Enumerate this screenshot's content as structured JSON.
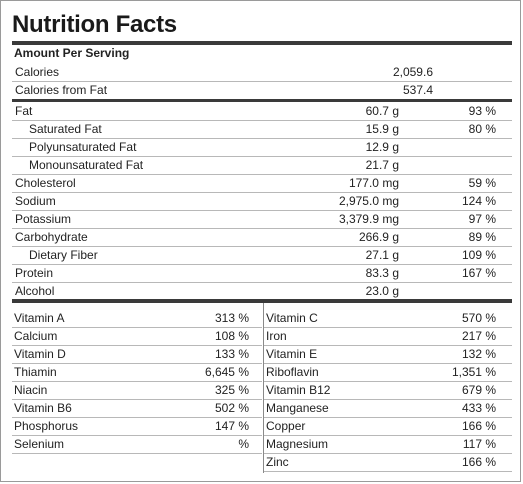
{
  "title": "Nutrition Facts",
  "amount_per_serving": "Amount Per Serving",
  "calories": [
    {
      "label": "Calories",
      "value": "2,059.6"
    },
    {
      "label": "Calories from Fat",
      "value": "537.4"
    }
  ],
  "nutrients": [
    {
      "label": "Fat",
      "amount": "60.7 g",
      "pct": "93 %",
      "indent": false
    },
    {
      "label": "Saturated Fat",
      "amount": "15.9 g",
      "pct": "80 %",
      "indent": true
    },
    {
      "label": "Polyunsaturated Fat",
      "amount": "12.9 g",
      "pct": "",
      "indent": true
    },
    {
      "label": "Monounsaturated Fat",
      "amount": "21.7 g",
      "pct": "",
      "indent": true
    },
    {
      "label": "Cholesterol",
      "amount": "177.0 mg",
      "pct": "59 %",
      "indent": false
    },
    {
      "label": "Sodium",
      "amount": "2,975.0 mg",
      "pct": "124 %",
      "indent": false
    },
    {
      "label": "Potassium",
      "amount": "3,379.9 mg",
      "pct": "97 %",
      "indent": false
    },
    {
      "label": "Carbohydrate",
      "amount": "266.9 g",
      "pct": "89 %",
      "indent": false
    },
    {
      "label": "Dietary Fiber",
      "amount": "27.1 g",
      "pct": "109 %",
      "indent": true
    },
    {
      "label": "Protein",
      "amount": "83.3 g",
      "pct": "167 %",
      "indent": false
    },
    {
      "label": "Alcohol",
      "amount": "23.0 g",
      "pct": "",
      "indent": false
    }
  ],
  "vitamins_left": [
    {
      "label": "Vitamin A",
      "pct": "313 %"
    },
    {
      "label": "Calcium",
      "pct": "108 %"
    },
    {
      "label": "Vitamin D",
      "pct": "133 %"
    },
    {
      "label": "Thiamin",
      "pct": "6,645 %"
    },
    {
      "label": "Niacin",
      "pct": "325 %"
    },
    {
      "label": "Vitamin B6",
      "pct": "502 %"
    },
    {
      "label": "Phosphorus",
      "pct": "147 %"
    },
    {
      "label": "Selenium",
      "pct": "%"
    }
  ],
  "vitamins_right": [
    {
      "label": "Vitamin C",
      "pct": "570 %"
    },
    {
      "label": "Iron",
      "pct": "217 %"
    },
    {
      "label": "Vitamin E",
      "pct": "132 %"
    },
    {
      "label": "Riboflavin",
      "pct": "1,351 %"
    },
    {
      "label": "Vitamin B12",
      "pct": "679 %"
    },
    {
      "label": "Manganese",
      "pct": "433 %"
    },
    {
      "label": "Copper",
      "pct": "166 %"
    },
    {
      "label": "Magnesium",
      "pct": "117 %"
    },
    {
      "label": "Zinc",
      "pct": "166 %"
    }
  ]
}
